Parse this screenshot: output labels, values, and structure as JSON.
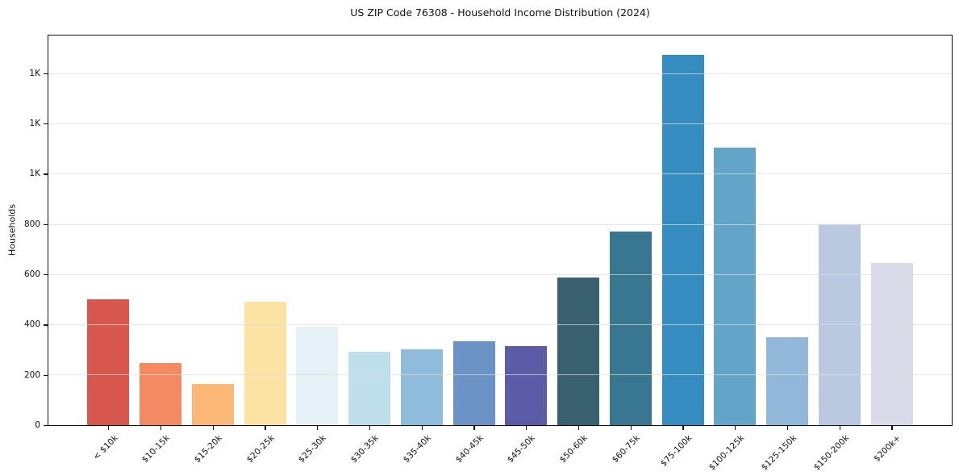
{
  "chart_data": {
    "type": "bar",
    "title": "US ZIP Code 76308 - Household Income Distribution (2024)",
    "xlabel": "",
    "ylabel": "Households",
    "categories": [
      "< $10k",
      "$10-15k",
      "$15-20k",
      "$20-25k",
      "$25-30k",
      "$30-35k",
      "$35-40k",
      "$40-45k",
      "$45-50k",
      "$50-60k",
      "$60-75k",
      "$75-100k",
      "$100-125k",
      "$125-150k",
      "$150-200k",
      "$200k+"
    ],
    "values": [
      500,
      246,
      164,
      492,
      390,
      291,
      300,
      334,
      315,
      589,
      770,
      1475,
      1105,
      349,
      799,
      646
    ],
    "bar_colors": [
      "#d7574e",
      "#f48a64",
      "#fbb876",
      "#fde3a3",
      "#e6f1f5",
      "#bfdfed",
      "#90bcdb",
      "#6b93c6",
      "#5c5ba7",
      "#38606f",
      "#38778f",
      "#358cbf",
      "#62a5c9",
      "#91b8d8",
      "#bac9e0",
      "#d9d9e8"
    ],
    "ylim": [
      0,
      1555
    ],
    "yticks": [
      0,
      200,
      400,
      600,
      800,
      1000,
      1200,
      1400
    ],
    "ytick_labels": [
      "0",
      "200",
      "400",
      "600",
      "800",
      "1K",
      "1K",
      "1K"
    ],
    "grid": "horizontal-only",
    "legend": "none"
  },
  "style": {
    "background": "#ffffff",
    "axis_color": "#111111",
    "grid_color": "#e9e9e9",
    "text_color": "#1a1a1a"
  }
}
